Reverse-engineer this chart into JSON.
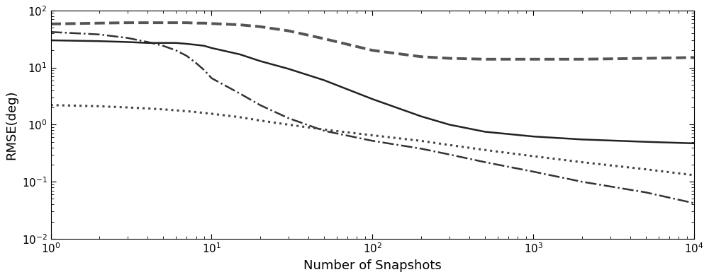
{
  "title": "",
  "xlabel": "Number of Snapshots",
  "ylabel": "RMSE(deg)",
  "xlim": [
    1,
    10000
  ],
  "ylim": [
    0.01,
    100
  ],
  "background_color": "#ffffff",
  "lines": {
    "dashed": {
      "x": [
        1,
        2,
        3,
        4,
        5,
        6,
        7,
        8,
        9,
        10,
        15,
        20,
        30,
        50,
        100,
        200,
        300,
        500,
        1000,
        2000,
        5000,
        10000
      ],
      "y": [
        58,
        60,
        61,
        61,
        61,
        61,
        61,
        60,
        60,
        59,
        56,
        52,
        44,
        32,
        20,
        15.5,
        14.5,
        14,
        14,
        14,
        14.5,
        15
      ],
      "style": "--",
      "color": "#555555",
      "linewidth": 2.8
    },
    "dashdot": {
      "x": [
        1,
        2,
        3,
        4,
        5,
        6,
        7,
        8,
        9,
        10,
        15,
        20,
        30,
        50,
        100,
        200,
        300,
        500,
        1000,
        2000,
        5000,
        10000
      ],
      "y": [
        42,
        38,
        33,
        28,
        24,
        20,
        16,
        12,
        9.0,
        6.5,
        3.5,
        2.2,
        1.3,
        0.78,
        0.52,
        0.38,
        0.3,
        0.22,
        0.15,
        0.1,
        0.065,
        0.042
      ],
      "style": "-.",
      "color": "#333333",
      "linewidth": 1.8
    },
    "solid": {
      "x": [
        1,
        2,
        3,
        4,
        5,
        6,
        7,
        8,
        9,
        10,
        15,
        20,
        30,
        50,
        100,
        200,
        300,
        500,
        1000,
        2000,
        5000,
        10000
      ],
      "y": [
        30,
        29,
        28,
        27,
        27,
        27,
        26,
        25,
        24,
        22,
        17,
        13,
        9.5,
        6.0,
        2.8,
        1.4,
        1.0,
        0.75,
        0.62,
        0.55,
        0.5,
        0.47
      ],
      "style": "-",
      "color": "#222222",
      "linewidth": 1.8
    },
    "dotted": {
      "x": [
        1,
        2,
        3,
        4,
        5,
        6,
        7,
        8,
        9,
        10,
        15,
        20,
        30,
        50,
        100,
        200,
        300,
        500,
        1000,
        2000,
        5000,
        10000
      ],
      "y": [
        2.2,
        2.1,
        2.0,
        1.92,
        1.85,
        1.78,
        1.72,
        1.66,
        1.6,
        1.55,
        1.35,
        1.18,
        1.0,
        0.82,
        0.65,
        0.52,
        0.44,
        0.36,
        0.28,
        0.22,
        0.165,
        0.13
      ],
      "style": ":",
      "color": "#444444",
      "linewidth": 2.2
    }
  },
  "tick_color": "#000000",
  "axis_color": "#000000",
  "fontsize_label": 13,
  "fontsize_tick": 11
}
